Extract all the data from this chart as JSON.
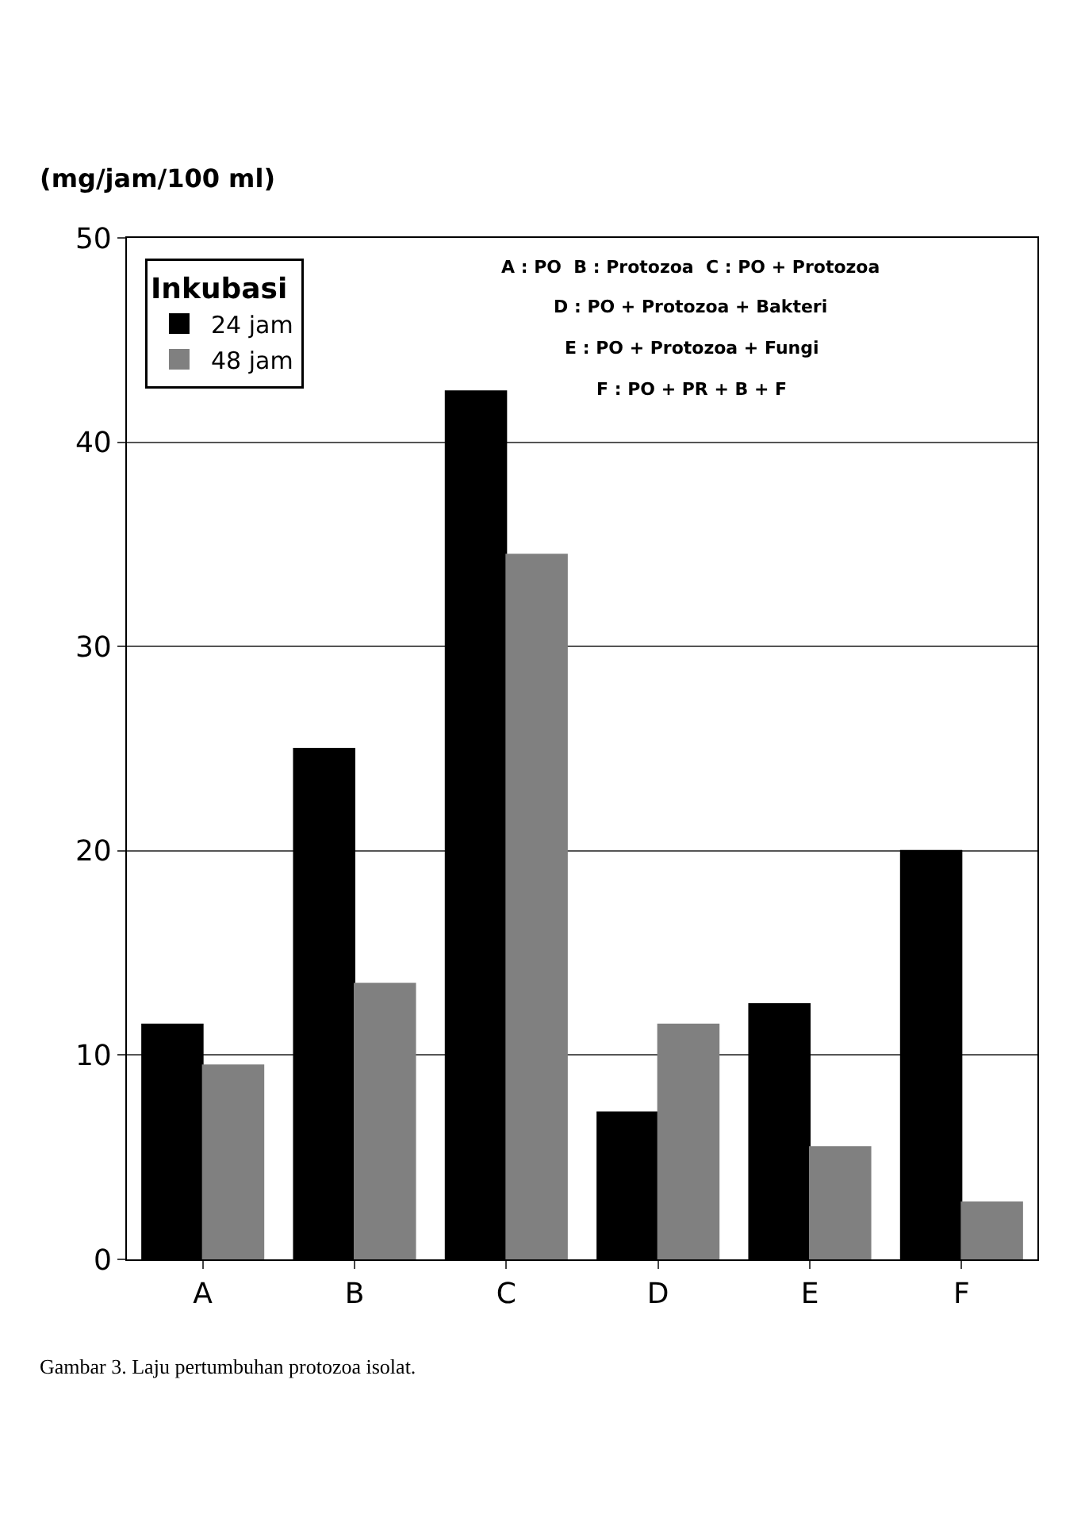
{
  "chart_data": {
    "type": "bar",
    "ylabel": "(mg/jam/100 ml)",
    "legend_title": "Inkubasi",
    "categories": [
      "A",
      "B",
      "C",
      "D",
      "E",
      "F"
    ],
    "series": [
      {
        "name": "24 jam",
        "color": "#000000",
        "values": [
          11.5,
          25,
          42.5,
          7.2,
          12.5,
          20
        ]
      },
      {
        "name": "48 jam",
        "color": "#808080",
        "values": [
          9.5,
          13.5,
          34.5,
          11.5,
          5.5,
          2.8
        ]
      }
    ],
    "ylim": [
      0,
      50
    ],
    "yticks": [
      0,
      10,
      20,
      30,
      40,
      50
    ],
    "grid": "y",
    "legend": "top left",
    "annotations": [
      "A : PO  B : Protozoa  C : PO + Protozoa",
      "D : PO + Protozoa + Bakteri",
      "E : PO + Protozoa + Fungi",
      "F : PO + PR + B + F",
      "Gambar 3. Laju pertumbuhan protozoa isolat."
    ]
  }
}
